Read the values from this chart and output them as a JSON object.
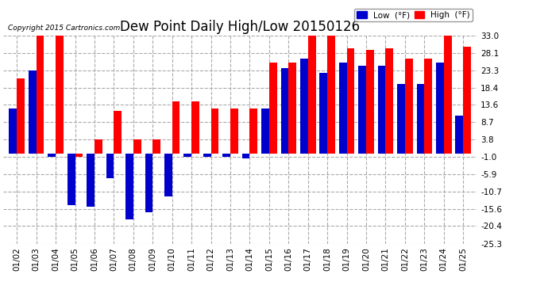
{
  "title": "Dew Point Daily High/Low 20150126",
  "copyright": "Copyright 2015 Cartronics.com",
  "dates": [
    "01/02",
    "01/03",
    "01/04",
    "01/05",
    "01/06",
    "01/07",
    "01/08",
    "01/09",
    "01/10",
    "01/11",
    "01/12",
    "01/13",
    "01/14",
    "01/15",
    "01/16",
    "01/17",
    "01/18",
    "01/19",
    "01/20",
    "01/21",
    "01/22",
    "01/23",
    "01/24",
    "01/25"
  ],
  "high": [
    21.0,
    33.0,
    33.0,
    -1.0,
    3.8,
    12.0,
    3.8,
    3.8,
    14.5,
    14.5,
    12.5,
    12.5,
    12.5,
    25.5,
    25.5,
    33.0,
    33.0,
    29.5,
    29.0,
    29.5,
    26.5,
    26.5,
    33.0,
    30.0
  ],
  "low": [
    12.5,
    23.3,
    -1.0,
    -14.5,
    -15.0,
    -7.0,
    -18.5,
    -16.5,
    -12.0,
    -1.0,
    -1.0,
    -1.0,
    -1.5,
    12.5,
    23.8,
    26.5,
    22.5,
    25.5,
    24.5,
    24.5,
    19.5,
    19.5,
    25.5,
    10.5
  ],
  "high_color": "#ff0000",
  "low_color": "#0000cc",
  "ylim": [
    -25.3,
    33.0
  ],
  "yticks": [
    33.0,
    28.1,
    23.3,
    18.4,
    13.6,
    8.7,
    3.8,
    -1.0,
    -5.9,
    -10.7,
    -15.6,
    -20.4,
    -25.3
  ],
  "bg_color": "#ffffff",
  "grid_color": "#aaaaaa",
  "title_fontsize": 12,
  "bar_width": 0.4
}
